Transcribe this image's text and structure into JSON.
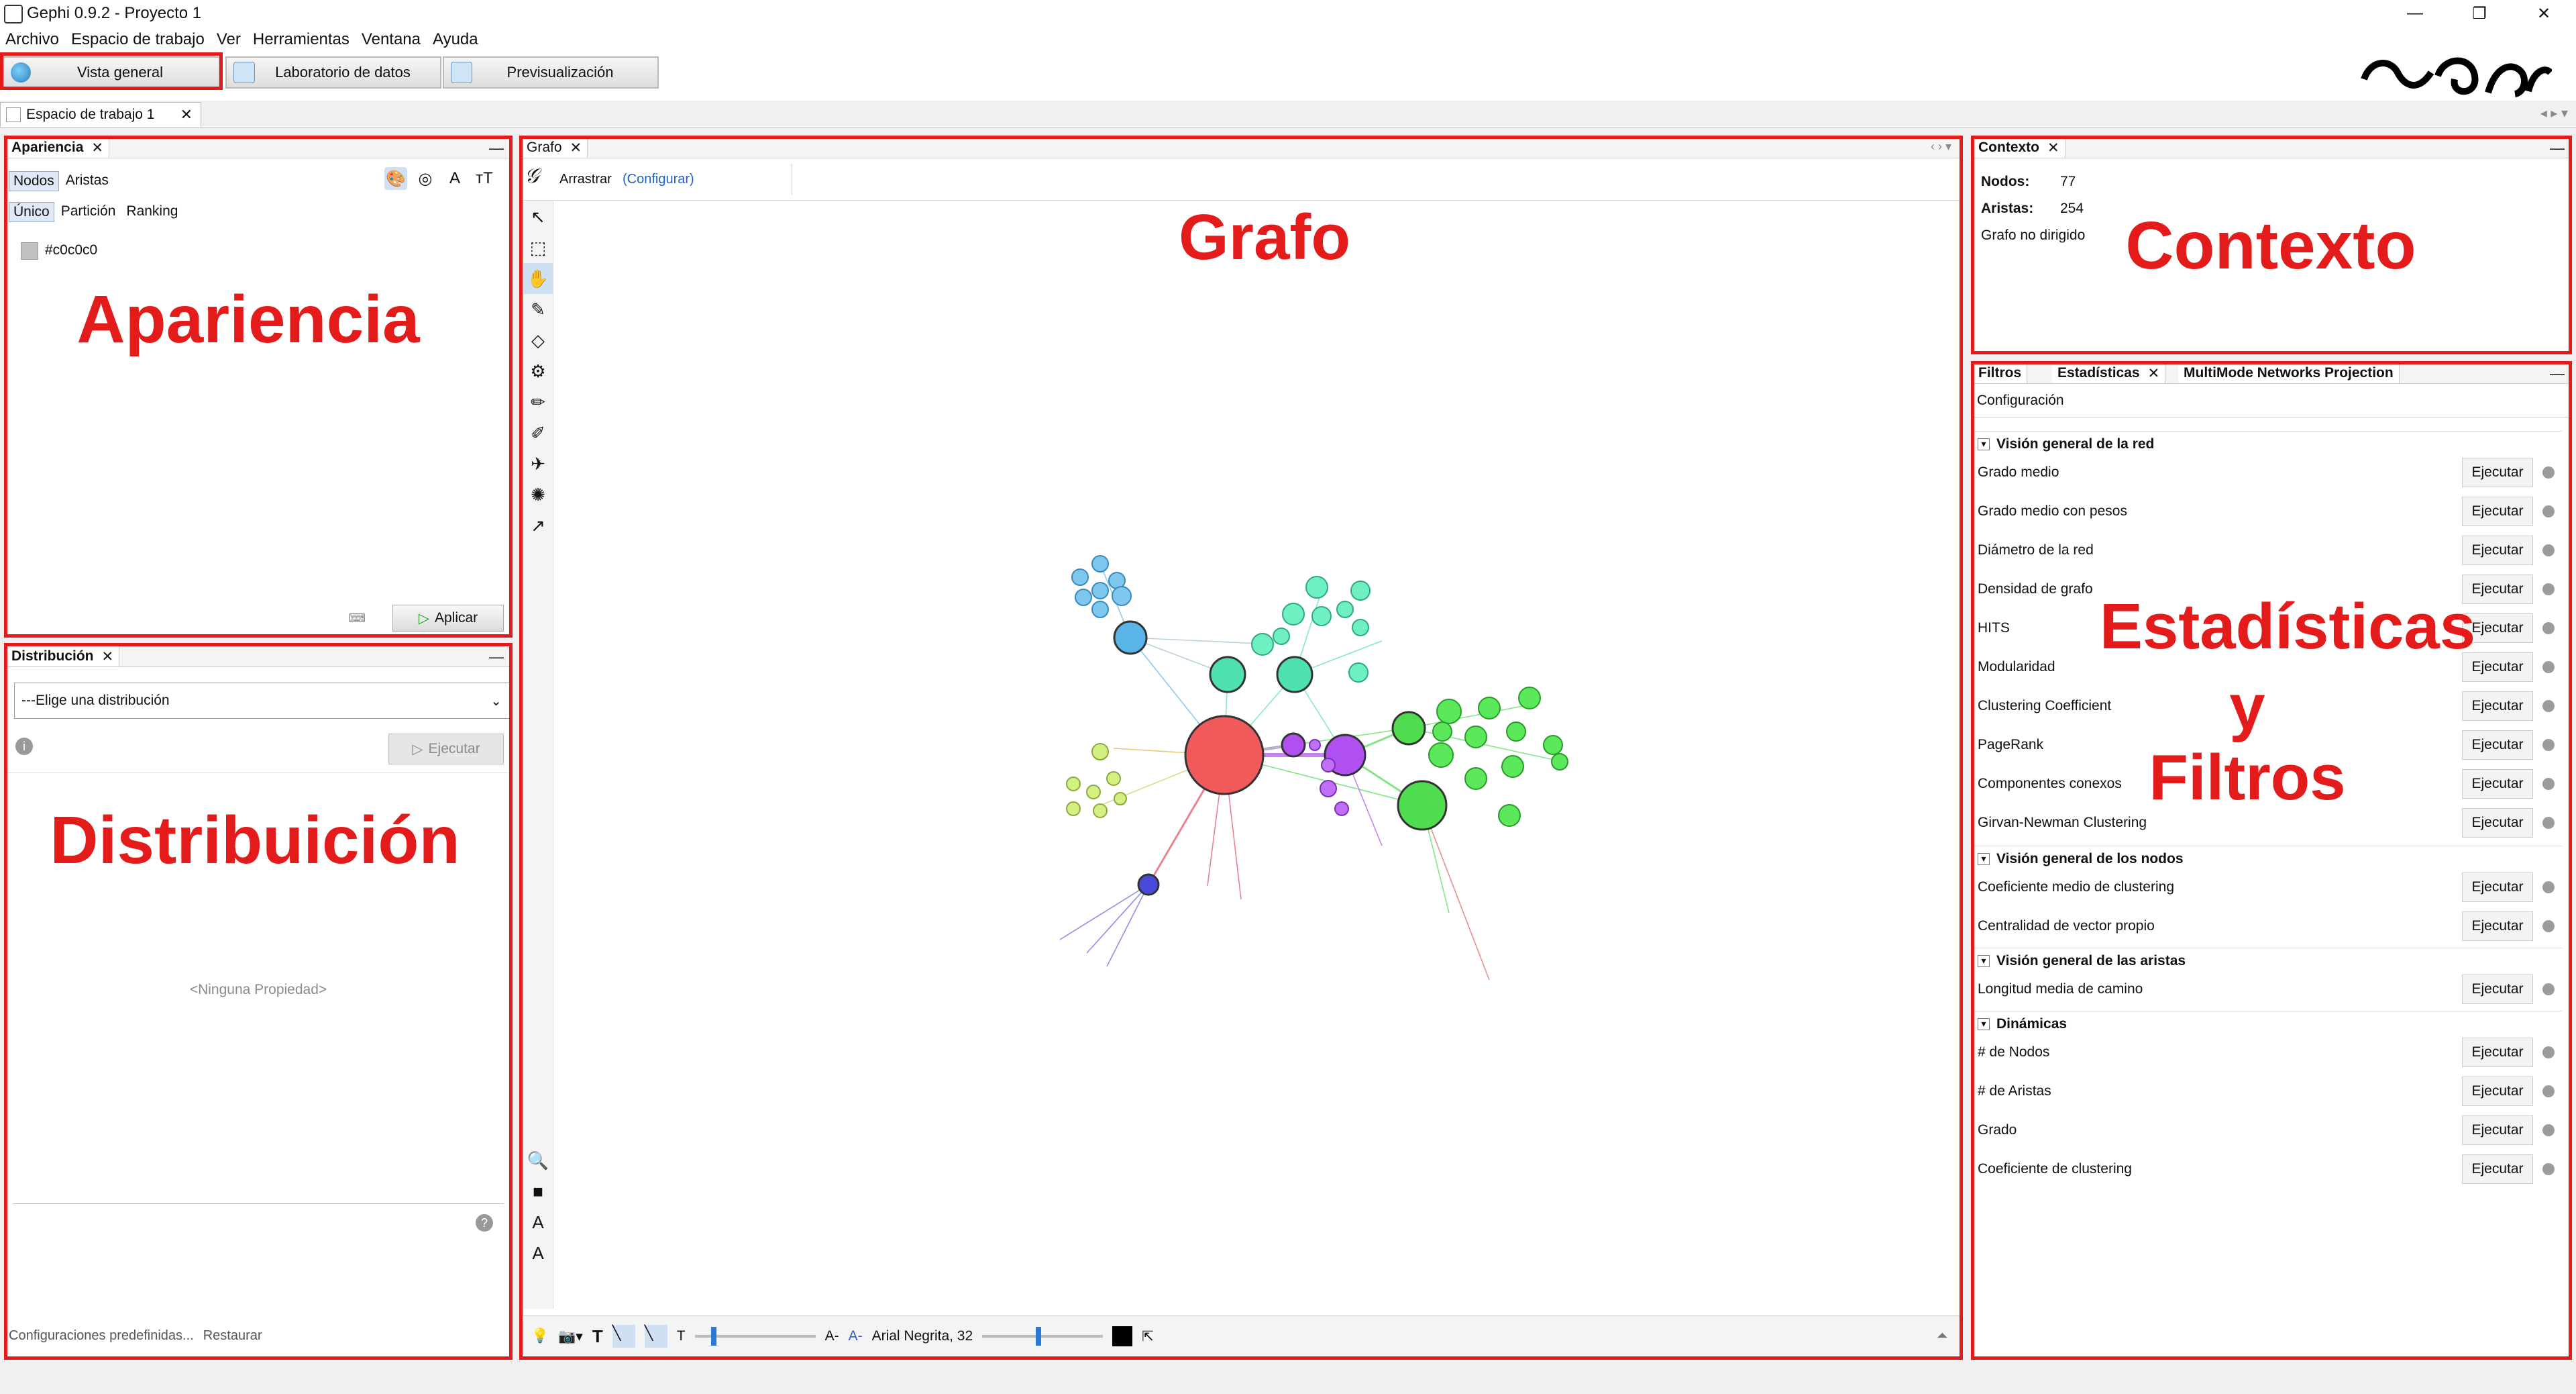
{
  "window": {
    "title": "Gephi 0.9.2 - Proyecto 1",
    "controls": {
      "minimize": "—",
      "restore": "❐",
      "close": "✕"
    }
  },
  "menu": [
    "Archivo",
    "Espacio de trabajo",
    "Ver",
    "Herramientas",
    "Ventana",
    "Ayuda"
  ],
  "modes": {
    "overview": "Vista general",
    "data_lab": "Laboratorio de datos",
    "preview": "Previsualización"
  },
  "workspace": {
    "tab": "Espacio de trabajo 1"
  },
  "appearance": {
    "title": "Apariencia",
    "tabs": [
      "Nodos",
      "Aristas"
    ],
    "modes": [
      "Único",
      "Partición",
      "Ranking"
    ],
    "color_value": "#c0c0c0",
    "apply": "Aplicar"
  },
  "distribution": {
    "title": "Distribución",
    "select": "---Elige una distribución",
    "run": "Ejecutar",
    "empty": "<Ninguna Propiedad>",
    "presets": "Configuraciones predefinidas...",
    "restore": "Restaurar"
  },
  "graph": {
    "title": "Grafo",
    "drag": "Arrastrar",
    "configure": "(Configurar)",
    "font": "Arial Negrita, 32"
  },
  "context": {
    "title": "Contexto",
    "nodes_label": "Nodos:",
    "nodes": "77",
    "edges_label": "Aristas:",
    "edges": "254",
    "type": "Grafo no dirigido"
  },
  "stats": {
    "tabs": [
      "Filtros",
      "Estadísticas",
      "MultiMode Networks Projection"
    ],
    "settings": "Configuración",
    "run": "Ejecutar",
    "sections": [
      {
        "title": "Visión general de la red",
        "items": [
          "Grado medio",
          "Grado medio con pesos",
          "Diámetro de la red",
          "Densidad de grafo",
          "HITS",
          "Modularidad",
          "Clustering Coefficient",
          "PageRank",
          "Componentes conexos",
          "Girvan-Newman Clustering"
        ]
      },
      {
        "title": "Visión general de los nodos",
        "items": [
          "Coeficiente medio de clustering",
          "Centralidad de vector propio"
        ]
      },
      {
        "title": "Visión general de las aristas",
        "items": [
          "Longitud media de camino"
        ]
      },
      {
        "title": "Dinámicas",
        "items": [
          "# de Nodos",
          "# de Aristas",
          "Grado",
          "Coeficiente de clustering"
        ]
      }
    ]
  },
  "annotations": {
    "apariencia": "Apariencia",
    "distribucion": "Distribuición",
    "grafo": "Grafo",
    "contexto": "Contexto",
    "estadisticas": "Estadísticas",
    "y": "y",
    "filtros": "Filtros"
  },
  "colors": {
    "annotation_red": "#e31b1b",
    "node_red": "#f05a5a",
    "node_blue": "#5ab4e8",
    "node_teal": "#4fe0b0",
    "node_green": "#4fdc4f",
    "node_purple": "#b050f0",
    "node_lime": "#b8e860",
    "node_navy": "#4a4ad8"
  }
}
